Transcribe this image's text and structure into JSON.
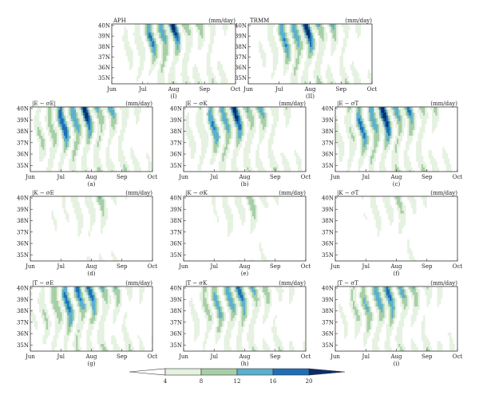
{
  "colorbar": {
    "ticks": [
      "4",
      "8",
      "12",
      "16",
      "20"
    ],
    "colors": [
      "#ffffff",
      "#e6f2e1",
      "#a7cfa7",
      "#5bb0cd",
      "#1f6fb4",
      "#0a2d6b"
    ]
  },
  "chart_data": [
    {
      "type": "heatmap",
      "title": "APH",
      "units": "(mm/day)",
      "label": "(I)",
      "x_ticks": [
        "Jun",
        "Jul",
        "Aug",
        "Sep",
        "Oct"
      ],
      "y_ticks": [
        "40N",
        "39N",
        "38N",
        "37N",
        "36N",
        "35N"
      ],
      "levels": [
        4,
        8,
        12,
        16,
        20
      ]
    },
    {
      "type": "heatmap",
      "title": "TRMM",
      "units": "(mm/day)",
      "label": "(II)",
      "x_ticks": [
        "Jun",
        "Jul",
        "Aug",
        "Sep",
        "Oct"
      ],
      "y_ticks": [
        "40N",
        "39N",
        "38N",
        "37N",
        "36N",
        "35N"
      ],
      "levels": [
        4,
        8,
        12,
        16,
        20
      ]
    },
    {
      "type": "heatmap",
      "title": "|E − σE|",
      "units": "(mm/day)",
      "label": "(a)",
      "x_ticks": [
        "Jun",
        "Jul",
        "Aug",
        "Sep",
        "Oct"
      ],
      "y_ticks": [
        "40N",
        "39N",
        "38N",
        "37N",
        "36N",
        "35N"
      ],
      "levels": [
        4,
        8,
        12,
        16,
        20
      ]
    },
    {
      "type": "heatmap",
      "title": "|E − σK",
      "units": "(mm/day)",
      "label": "(b)",
      "x_ticks": [
        "Jun",
        "Jul",
        "Aug",
        "Sep",
        "Oct"
      ],
      "y_ticks": [
        "40N",
        "39N",
        "38N",
        "37N",
        "36N",
        "35N"
      ],
      "levels": [
        4,
        8,
        12,
        16,
        20
      ]
    },
    {
      "type": "heatmap",
      "title": "|E − σT",
      "units": "(mm/day)",
      "label": "(c)",
      "x_ticks": [
        "Jun",
        "Jul",
        "Aug",
        "Sep",
        "Oct"
      ],
      "y_ticks": [
        "40N",
        "39N",
        "38N",
        "37N",
        "36N",
        "35N"
      ],
      "levels": [
        4,
        8,
        12,
        16,
        20
      ]
    },
    {
      "type": "heatmap",
      "title": "|K − σE",
      "units": "(mm/day)",
      "label": "(d)",
      "x_ticks": [
        "Jun",
        "Jul",
        "Aug",
        "Sep",
        "Oct"
      ],
      "y_ticks": [
        "40N",
        "39N",
        "38N",
        "37N",
        "36N",
        "35N"
      ],
      "levels": [
        4,
        8,
        12,
        16,
        20
      ]
    },
    {
      "type": "heatmap",
      "title": "|K − σK",
      "units": "(mm/day)",
      "label": "(e)",
      "x_ticks": [
        "Jun",
        "Jul",
        "Aug",
        "Sep",
        "Oct"
      ],
      "y_ticks": [
        "40N",
        "39N",
        "38N",
        "37N",
        "36N",
        "35N"
      ],
      "levels": [
        4,
        8,
        12,
        16,
        20
      ]
    },
    {
      "type": "heatmap",
      "title": "|K − σT",
      "units": "(mm/day)",
      "label": "(f)",
      "x_ticks": [
        "Jun",
        "Jul",
        "Aug",
        "Sep",
        "Oct"
      ],
      "y_ticks": [
        "40N",
        "39N",
        "38N",
        "37N",
        "36N",
        "35N"
      ],
      "levels": [
        4,
        8,
        12,
        16,
        20
      ]
    },
    {
      "type": "heatmap",
      "title": "|T − σE",
      "units": "(mm/day)",
      "label": "(g)",
      "x_ticks": [
        "Jun",
        "Jul",
        "Aug",
        "Sep",
        "Oct"
      ],
      "y_ticks": [
        "40N",
        "39N",
        "38N",
        "37N",
        "36N",
        "35N"
      ],
      "levels": [
        4,
        8,
        12,
        16,
        20
      ]
    },
    {
      "type": "heatmap",
      "title": "|T − σK",
      "units": "(mm/day)",
      "label": "(h)",
      "x_ticks": [
        "Jun",
        "Jul",
        "Aug",
        "Sep",
        "Oct"
      ],
      "y_ticks": [
        "40N",
        "39N",
        "38N",
        "37N",
        "36N",
        "35N"
      ],
      "levels": [
        4,
        8,
        12,
        16,
        20
      ]
    },
    {
      "type": "heatmap",
      "title": "|T − σT",
      "units": "(mm/day)",
      "label": "(i)",
      "x_ticks": [
        "Jun",
        "Jul",
        "Aug",
        "Sep",
        "Oct"
      ],
      "y_ticks": [
        "40N",
        "39N",
        "38N",
        "37N",
        "36N",
        "35N"
      ],
      "levels": [
        4,
        8,
        12,
        16,
        20
      ]
    }
  ]
}
